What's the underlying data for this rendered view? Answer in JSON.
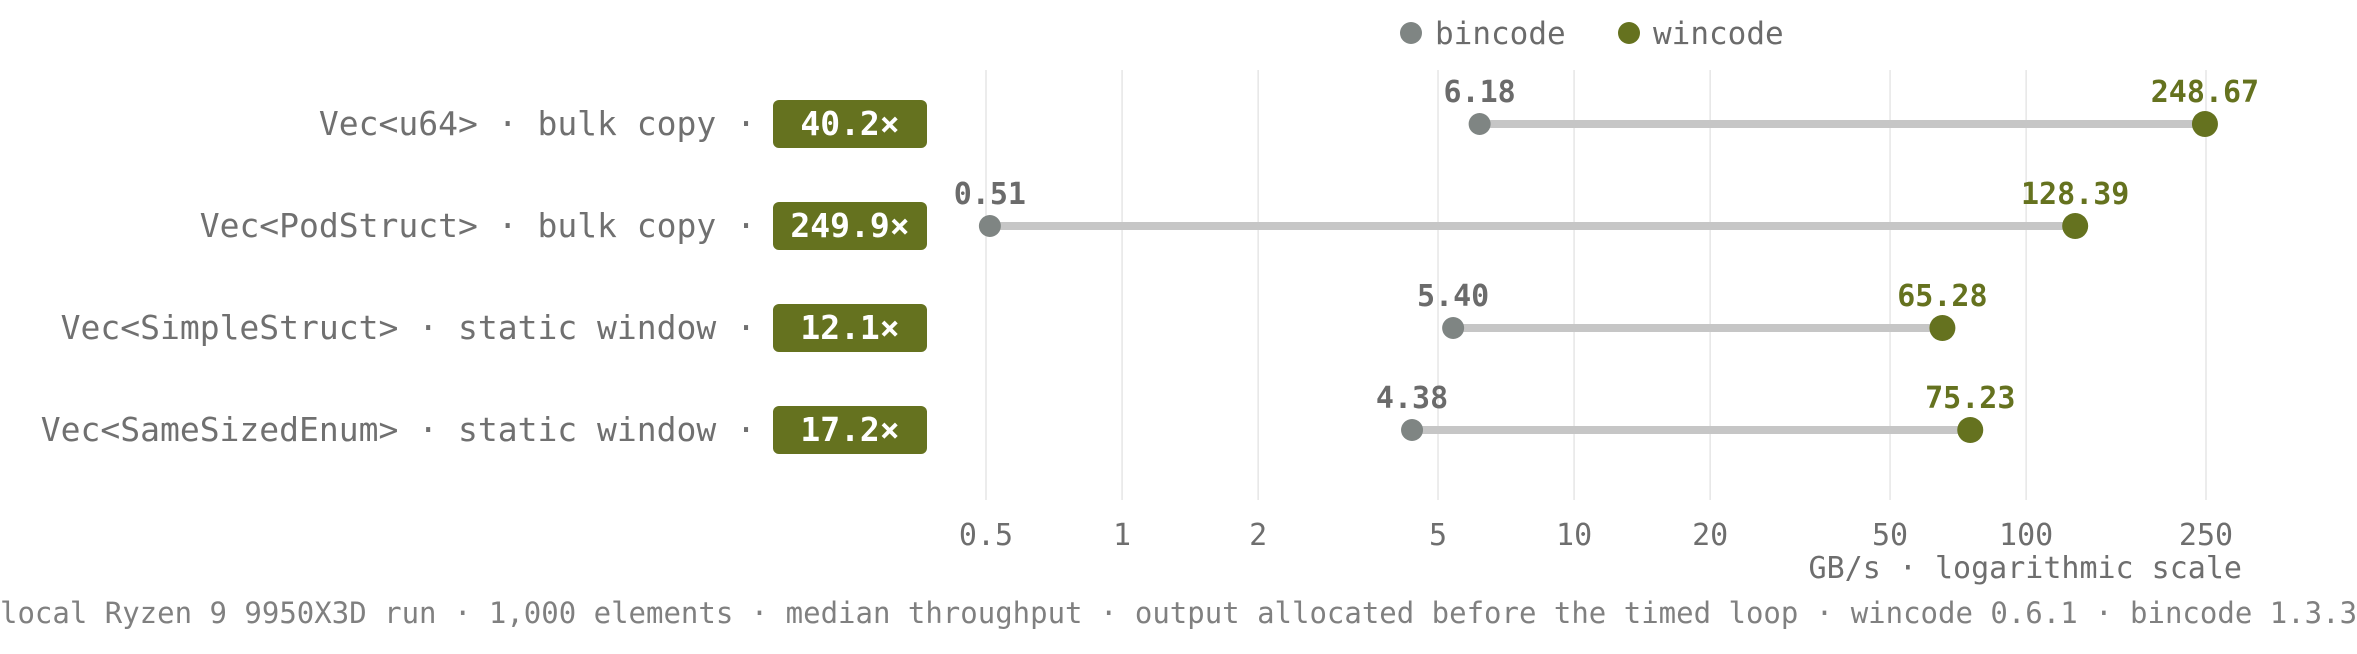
{
  "chart_data": {
    "type": "dumbbell",
    "legend": {
      "placement": "top-center",
      "entries": [
        {
          "name": "bincode",
          "color": "#7f8583"
        },
        {
          "name": "wincode",
          "color": "#65721f"
        }
      ]
    },
    "categories": [
      "Vec<u64> · bulk copy ·",
      "Vec<PodStruct> · bulk copy ·",
      "Vec<SimpleStruct> · static window ·",
      "Vec<SameSizedEnum> · static window ·"
    ],
    "speedup_badges": [
      "40.2×",
      "249.9×",
      "12.1×",
      "17.2×"
    ],
    "series": [
      {
        "name": "bincode",
        "values": [
          6.18,
          0.51,
          5.4,
          4.38
        ],
        "labels": [
          "6.18",
          "0.51",
          "5.40",
          "4.38"
        ]
      },
      {
        "name": "wincode",
        "values": [
          248.67,
          128.39,
          65.28,
          75.23
        ],
        "labels": [
          "248.67",
          "128.39",
          "65.28",
          "75.23"
        ]
      }
    ],
    "x_axis": {
      "scale": "log",
      "range": [
        0.5,
        250
      ],
      "ticks": [
        0.5,
        1,
        2,
        5,
        10,
        20,
        50,
        100,
        250
      ],
      "tick_labels": [
        "0.5",
        "1",
        "2",
        "5",
        "10",
        "20",
        "50",
        "100",
        "250"
      ],
      "label": "GB/s · logarithmic scale"
    },
    "grid": true,
    "colors": {
      "bincode": "#7f8583",
      "wincode": "#65721f",
      "connector": "#c6c6c6",
      "badge": "#65721f",
      "grid": "#e6e6e6",
      "category_text": "#707070",
      "tick_text": "#6e6e6e"
    }
  },
  "footnote": "local Ryzen 9 9950X3D run · 1,000 elements · median throughput · output allocated before the timed loop · wincode 0.6.1 · bincode 1.3.3"
}
